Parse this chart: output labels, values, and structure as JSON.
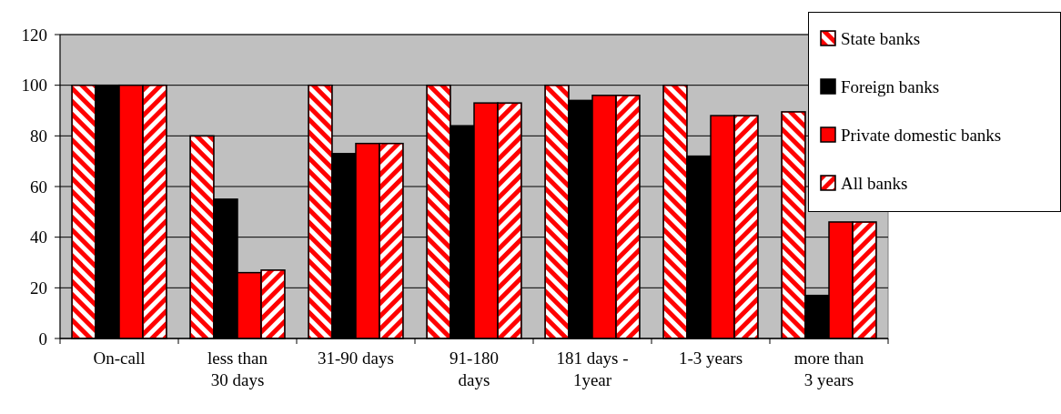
{
  "chart_data": {
    "type": "bar",
    "categories": [
      "On-call",
      "less than 30 days",
      "31-90 days",
      "91-180 days",
      "181 days - 1year",
      "1-3 years",
      "more than 3 years"
    ],
    "series": [
      {
        "name": "State banks",
        "color": "#ff0000",
        "values": [
          100,
          80,
          100,
          100,
          100,
          100,
          89.5
        ]
      },
      {
        "name": "Foreign banks",
        "color": "#000000",
        "values": [
          100,
          55,
          73,
          84,
          94,
          72,
          17
        ]
      },
      {
        "name": "Private domestic banks",
        "color": "#ff0000",
        "values": [
          100,
          26,
          77,
          93,
          96,
          88,
          46
        ]
      },
      {
        "name": "All banks",
        "color": "#ff0000",
        "values": [
          100,
          27,
          77,
          93,
          96,
          88,
          46
        ]
      }
    ],
    "ylim": [
      0,
      120
    ],
    "yticks": [
      0,
      20,
      40,
      60,
      80,
      100,
      120
    ],
    "grid": "y",
    "legend": "top right"
  }
}
